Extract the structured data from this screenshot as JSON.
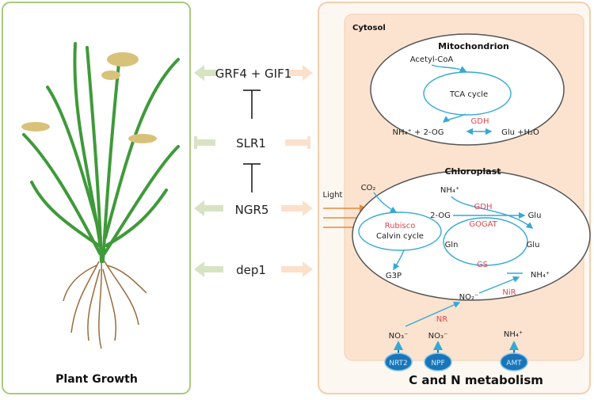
{
  "left_panel": {
    "title": "Plant Growth"
  },
  "regulators": {
    "grf4_gif1": "GRF4 + GIF1",
    "slr1": "SLR1",
    "ngr5": "NGR5",
    "dep1": "dep1"
  },
  "right_panel": {
    "title": "C and N metabolism",
    "cytosol": "Cytosol",
    "mitochondrion": {
      "title": "Mitochondrion",
      "acetyl_coa": "Acetyl-CoA",
      "tca": "TCA cycle",
      "gdh": "GDH",
      "left": "NH₄⁺ + 2-OG",
      "right": "Glu +H₂O"
    },
    "chloroplast": {
      "title": "Chloroplast",
      "co2": "CO₂",
      "light": "Light",
      "nh4_top": "NH₄⁺",
      "two_og": "2-OG",
      "gdh": "GDH",
      "gogat": "GOGAT",
      "glu_top": "Glu",
      "glu_mid": "Glu",
      "gln": "Gln",
      "rubisco": "Rubisco",
      "calvin": "Calvin cycle",
      "gs": "GS",
      "g3p": "G3P",
      "nh4_bottom": "NH₄⁺",
      "no2": "NO₂⁻",
      "nir": "NiR"
    },
    "nr": "NR",
    "transporters": [
      {
        "substrate": "NO₃⁻",
        "name": "NRT2"
      },
      {
        "substrate": "NO₃⁻",
        "name": "NPF"
      },
      {
        "substrate": "NH₄⁺",
        "name": "AMT"
      }
    ]
  },
  "colors": {
    "green_panel": "#a9c97f",
    "orange_panel": "#f4cfae",
    "cytosol": "#fbe3cf",
    "pathway": "#35a9d4",
    "enzyme": "#e0454f",
    "transporter": "#1a75b8"
  }
}
